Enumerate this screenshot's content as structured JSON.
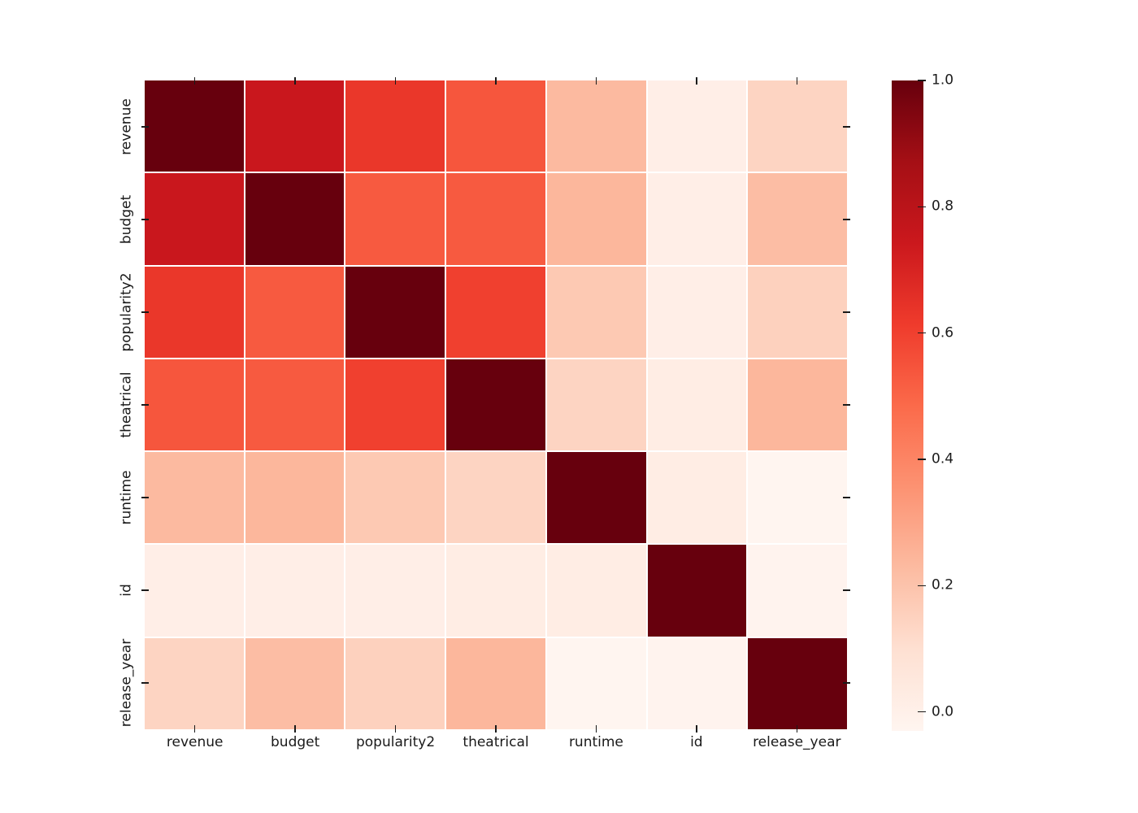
{
  "figure": {
    "background": "#ffffff",
    "grid_line_color": "#ffffff",
    "tick_color": "#1a1a1a",
    "label_color": "#1a1a1a"
  },
  "chart_data": {
    "type": "heatmap",
    "title": "",
    "description": "Correlation matrix heatmap with Reds colormap",
    "categories": [
      "revenue",
      "budget",
      "popularity2",
      "theatrical",
      "runtime",
      "id",
      "release_year"
    ],
    "matrix": [
      [
        1.0,
        0.75,
        0.63,
        0.54,
        0.23,
        0.01,
        0.14
      ],
      [
        0.75,
        1.0,
        0.53,
        0.53,
        0.24,
        0.01,
        0.22
      ],
      [
        0.63,
        0.53,
        1.0,
        0.6,
        0.18,
        0.01,
        0.15
      ],
      [
        0.54,
        0.53,
        0.6,
        1.0,
        0.14,
        0.02,
        0.24
      ],
      [
        0.23,
        0.24,
        0.18,
        0.14,
        1.0,
        0.02,
        -0.03
      ],
      [
        0.01,
        0.01,
        0.01,
        0.02,
        0.02,
        1.0,
        -0.02
      ],
      [
        0.14,
        0.22,
        0.15,
        0.24,
        -0.03,
        -0.02,
        1.0
      ]
    ],
    "vmin": -0.03,
    "vmax": 1.0,
    "legend_position": "right",
    "grid": false,
    "colormap": {
      "name": "Reds",
      "stops": [
        {
          "t": 0.0,
          "rgb": [
            255,
            245,
            240
          ]
        },
        {
          "t": 0.125,
          "rgb": [
            254,
            224,
            210
          ]
        },
        {
          "t": 0.25,
          "rgb": [
            252,
            187,
            161
          ]
        },
        {
          "t": 0.375,
          "rgb": [
            252,
            146,
            114
          ]
        },
        {
          "t": 0.5,
          "rgb": [
            251,
            106,
            74
          ]
        },
        {
          "t": 0.625,
          "rgb": [
            239,
            59,
            44
          ]
        },
        {
          "t": 0.75,
          "rgb": [
            203,
            24,
            29
          ]
        },
        {
          "t": 0.875,
          "rgb": [
            165,
            15,
            21
          ]
        },
        {
          "t": 1.0,
          "rgb": [
            103,
            0,
            13
          ]
        }
      ]
    },
    "colorbar": {
      "tick_labels": [
        "1.0",
        "0.8",
        "0.6",
        "0.4",
        "0.2",
        "0.0"
      ],
      "tick_values": [
        1.0,
        0.8,
        0.6,
        0.4,
        0.2,
        0.0
      ]
    }
  }
}
